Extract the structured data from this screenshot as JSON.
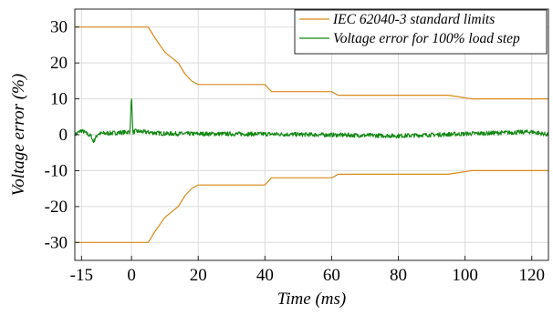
{
  "chart_data": {
    "type": "line",
    "xlabel": "Time (ms)",
    "ylabel": "Voltage error (%)",
    "xlim": [
      -17,
      125
    ],
    "ylim": [
      -35,
      35
    ],
    "xticks": [
      -15,
      0,
      20,
      40,
      60,
      80,
      100,
      120
    ],
    "yticks": [
      30,
      20,
      10,
      0,
      -10,
      -20,
      -30
    ],
    "grid": true,
    "legend_position": "top-right",
    "series": [
      {
        "name": "IEC 62040-3 standard limits",
        "color": "#d98a1a",
        "role": "upper",
        "x": [
          -17,
          5,
          7,
          10,
          14,
          16,
          18,
          20,
          40,
          42,
          60,
          62,
          95,
          102,
          125
        ],
        "y": [
          30,
          30,
          27,
          23,
          20,
          17,
          15,
          14,
          14,
          12,
          12,
          11,
          11,
          10,
          10
        ]
      },
      {
        "name": "",
        "color": "#d98a1a",
        "role": "lower",
        "x": [
          -17,
          5,
          7,
          10,
          14,
          16,
          18,
          20,
          40,
          42,
          60,
          62,
          95,
          102,
          125
        ],
        "y": [
          -30,
          -30,
          -27,
          -23,
          -20,
          -17,
          -15,
          -14,
          -14,
          -12,
          -12,
          -11,
          -11,
          -10,
          -10
        ]
      },
      {
        "name": "Voltage error for 100% load step",
        "color": "#118811",
        "role": "error",
        "noise_amplitude": 0.6,
        "x": [
          -17,
          -15,
          -12,
          -11.5,
          -10,
          -5,
          -0.5,
          0,
          0.4,
          1,
          10,
          40,
          80,
          120,
          125
        ],
        "y": [
          0,
          1.2,
          -0.5,
          -2.0,
          0.3,
          0.5,
          0.8,
          11,
          0.5,
          1.0,
          0.3,
          0.2,
          -0.3,
          0.8,
          0
        ]
      }
    ]
  }
}
